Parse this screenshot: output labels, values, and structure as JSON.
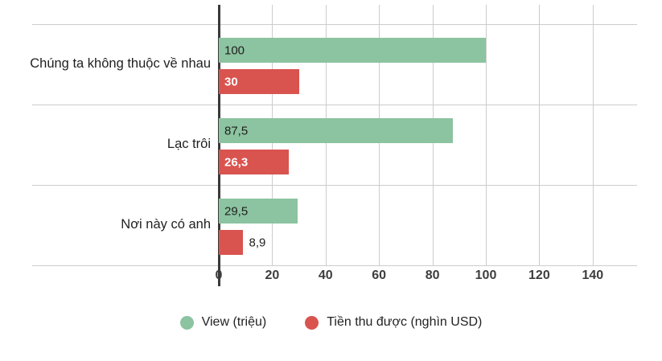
{
  "chart_data": {
    "type": "bar",
    "orientation": "horizontal",
    "title": "",
    "categories": [
      "Chúng ta không thuộc về nhau",
      "Lạc trôi",
      "Nơi này có anh"
    ],
    "series": [
      {
        "name": "View (triệu)",
        "color": "#8cc3a0",
        "values": [
          100,
          87.5,
          29.5
        ],
        "labels": [
          "100",
          "87,5",
          "29,5"
        ]
      },
      {
        "name": "Tiền thu được (nghìn USD)",
        "color": "#d9534f",
        "values": [
          30,
          26.3,
          8.9
        ],
        "labels": [
          "30",
          "26,3",
          "8,9"
        ]
      }
    ],
    "x_ticks": [
      0,
      20,
      40,
      60,
      80,
      100,
      120,
      140
    ],
    "x_tick_labels": [
      "0",
      "20",
      "40",
      "60",
      "80",
      "100",
      "120",
      "140"
    ],
    "xlim": [
      0,
      160
    ],
    "grid": true,
    "legend_position": "bottom",
    "colors": {
      "axis": "#3a3a3a",
      "gridline": "#cccccc",
      "text": "#1f1f1f",
      "tick_text": "#3d3d3d"
    }
  }
}
